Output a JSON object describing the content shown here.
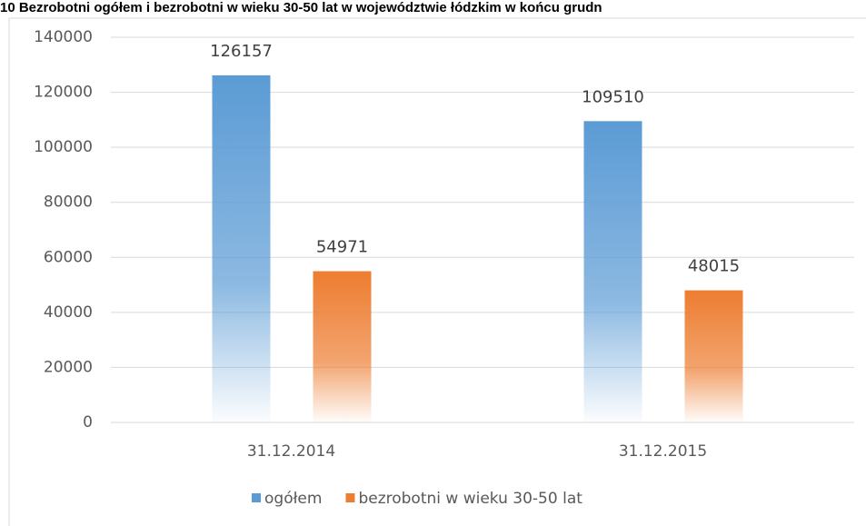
{
  "chart_data": {
    "type": "bar",
    "title": "10 Bezrobotni ogółem i bezrobotni w wieku 30-50 lat w województwie łódzkim w końcu grudn",
    "categories": [
      "31.12.2014",
      "31.12.2015"
    ],
    "series": [
      {
        "name": "ogółem",
        "color": "#5b9bd5",
        "values": [
          126157,
          109510
        ]
      },
      {
        "name": "bezrobotni w wieku 30-50 lat",
        "color": "#ed7d31",
        "values": [
          54971,
          48015
        ]
      }
    ],
    "ylim": [
      0,
      140000
    ],
    "yticks": [
      0,
      20000,
      40000,
      60000,
      80000,
      100000,
      120000,
      140000
    ],
    "grid": true,
    "legend": "bottom"
  }
}
